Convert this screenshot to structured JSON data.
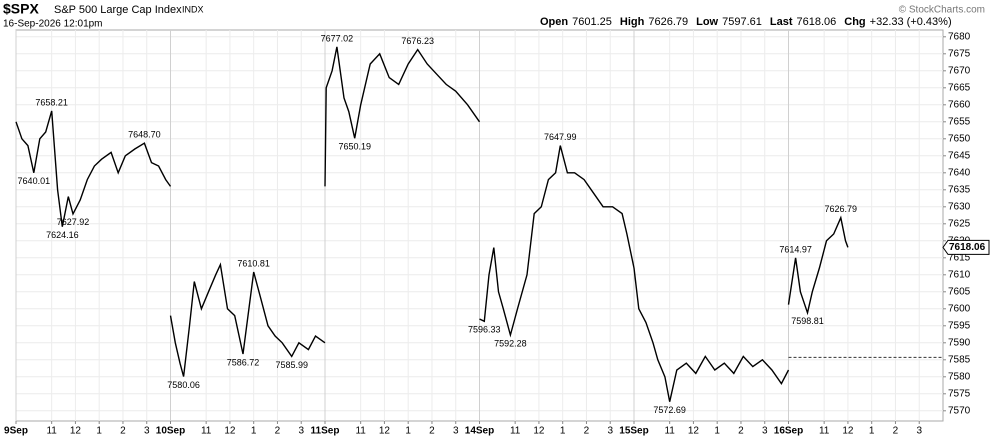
{
  "chart_data": {
    "type": "line",
    "title": "$SPX",
    "subtitle": "S&P 500 Large Cap Index",
    "exchange": "INDX",
    "timestamp": "16-Sep-2026 12:01pm",
    "quote": [
      {
        "label": "Open",
        "value": "7601.25"
      },
      {
        "label": "High",
        "value": "7626.79"
      },
      {
        "label": "Low",
        "value": "7597.61"
      },
      {
        "label": "Last",
        "value": "7618.06"
      },
      {
        "label": "Chg",
        "value": "+32.33 (+0.43%)"
      }
    ],
    "credit": "© StockCharts.com",
    "last_price": {
      "value": 7618.06,
      "label": "7618.06"
    },
    "reference_line": 7585.73,
    "color": "#000000",
    "grid": true,
    "xlim": [
      0,
      39
    ],
    "ylim": [
      7567,
      7682
    ],
    "yticks": [
      7570,
      7575,
      7580,
      7585,
      7590,
      7595,
      7600,
      7605,
      7610,
      7615,
      7620,
      7625,
      7630,
      7635,
      7640,
      7645,
      7650,
      7655,
      7660,
      7665,
      7670,
      7675,
      7680
    ],
    "xticks": [
      {
        "value": 0,
        "label": "9Sep"
      },
      {
        "value": 1.5,
        "label": "11"
      },
      {
        "value": 2.5,
        "label": "12"
      },
      {
        "value": 3.5,
        "label": "1"
      },
      {
        "value": 4.5,
        "label": "2"
      },
      {
        "value": 5.5,
        "label": "3"
      },
      {
        "value": 6.5,
        "label": "10Sep"
      },
      {
        "value": 8,
        "label": "11"
      },
      {
        "value": 9,
        "label": "12"
      },
      {
        "value": 10,
        "label": "1"
      },
      {
        "value": 11,
        "label": "2"
      },
      {
        "value": 12,
        "label": "3"
      },
      {
        "value": 13,
        "label": "11Sep"
      },
      {
        "value": 14.5,
        "label": "11"
      },
      {
        "value": 15.5,
        "label": "12"
      },
      {
        "value": 16.5,
        "label": "1"
      },
      {
        "value": 17.5,
        "label": "2"
      },
      {
        "value": 18.5,
        "label": "3"
      },
      {
        "value": 19.5,
        "label": "14Sep"
      },
      {
        "value": 21,
        "label": "11"
      },
      {
        "value": 22,
        "label": "12"
      },
      {
        "value": 23,
        "label": "1"
      },
      {
        "value": 24,
        "label": "2"
      },
      {
        "value": 25,
        "label": "3"
      },
      {
        "value": 26,
        "label": "15Sep"
      },
      {
        "value": 27.5,
        "label": "11"
      },
      {
        "value": 28.5,
        "label": "12"
      },
      {
        "value": 29.5,
        "label": "1"
      },
      {
        "value": 30.5,
        "label": "2"
      },
      {
        "value": 31.5,
        "label": "3"
      },
      {
        "value": 32.5,
        "label": "16Sep"
      },
      {
        "value": 34,
        "label": "11"
      },
      {
        "value": 35,
        "label": "12"
      },
      {
        "value": 36,
        "label": "1"
      },
      {
        "value": 37,
        "label": "2"
      },
      {
        "value": 38,
        "label": "3"
      }
    ],
    "x": [
      0,
      0.25,
      0.5,
      0.75,
      1,
      1.25,
      1.5,
      1.75,
      1.95,
      2.2,
      2.4,
      2.7,
      3,
      3.3,
      3.6,
      4,
      4.3,
      4.6,
      5,
      5.4,
      5.7,
      6,
      6.3,
      6.5,
      null,
      6.5,
      6.7,
      6.9,
      7.05,
      7.3,
      7.5,
      7.8,
      8.1,
      8.4,
      8.6,
      8.9,
      9.2,
      9.55,
      9.8,
      10,
      10.3,
      10.6,
      10.9,
      11.2,
      11.6,
      11.9,
      12.3,
      12.6,
      13,
      null,
      13,
      13.05,
      13.3,
      13.5,
      13.8,
      14,
      14.25,
      14.5,
      14.9,
      15.3,
      15.7,
      16.1,
      16.5,
      16.9,
      17.3,
      17.7,
      18.1,
      18.5,
      19,
      19.5,
      null,
      19.5,
      19.7,
      19.9,
      20.1,
      20.3,
      20.5,
      20.8,
      21.1,
      21.5,
      21.8,
      22.1,
      22.4,
      22.7,
      22.9,
      23.2,
      23.5,
      23.9,
      24.3,
      24.7,
      25.1,
      25.5,
      25.7,
      26,
      null,
      26,
      26.2,
      26.5,
      26.8,
      27,
      27.3,
      27.5,
      27.8,
      28.2,
      28.6,
      29,
      29.4,
      29.8,
      30.2,
      30.6,
      31,
      31.4,
      31.8,
      32.2,
      32.5,
      null,
      32.5,
      32.8,
      33,
      33.3,
      33.5,
      33.8,
      34.1,
      34.4,
      34.7,
      34.9,
      35
    ],
    "values": [
      7655,
      7650,
      7648,
      7640.01,
      7650,
      7652,
      7658.21,
      7635,
      7624.16,
      7633,
      7627.92,
      7632,
      7638,
      7642,
      7644,
      7646,
      7640,
      7645,
      7647,
      7648.7,
      7643,
      7642,
      7638,
      7636,
      null,
      7598,
      7590,
      7584,
      7580.06,
      7595,
      7608,
      7600,
      7605,
      7610,
      7613,
      7600,
      7598,
      7586.72,
      7600,
      7610.81,
      7603,
      7595,
      7592,
      7590,
      7585.99,
      7590,
      7588,
      7592,
      7590,
      null,
      7636,
      7665,
      7670,
      7677.02,
      7662,
      7658,
      7650.19,
      7660,
      7672,
      7675,
      7668,
      7666,
      7672,
      7676.23,
      7672,
      7669,
      7666,
      7664,
      7660,
      7655,
      null,
      7597,
      7596.33,
      7610,
      7618,
      7605,
      7600,
      7592.28,
      7600,
      7610,
      7628,
      7630,
      7638,
      7640,
      7647.99,
      7640,
      7640,
      7638,
      7634,
      7630,
      7630,
      7628,
      7622,
      7612,
      null,
      7612,
      7600,
      7596,
      7590,
      7585,
      7580,
      7572.69,
      7582,
      7584,
      7581,
      7586,
      7582,
      7584,
      7581,
      7586,
      7583,
      7585,
      7582,
      7578,
      7582,
      null,
      7601.25,
      7614.97,
      7605,
      7598.81,
      7605,
      7612,
      7620,
      7622,
      7626.79,
      7620,
      7618.06
    ],
    "annotations": [
      {
        "x": 1.5,
        "y": 7658.21,
        "label": "7658.21",
        "position": "above"
      },
      {
        "x": 0.75,
        "y": 7640.01,
        "label": "7640.01",
        "position": "below"
      },
      {
        "x": 1.95,
        "y": 7624.16,
        "label": "7624.16",
        "position": "below"
      },
      {
        "x": 2.4,
        "y": 7627.92,
        "label": "7627.92",
        "position": "below"
      },
      {
        "x": 5.4,
        "y": 7648.7,
        "label": "7648.70",
        "position": "above"
      },
      {
        "x": 7.05,
        "y": 7580.06,
        "label": "7580.06",
        "position": "below"
      },
      {
        "x": 9.55,
        "y": 7586.72,
        "label": "7586.72",
        "position": "below"
      },
      {
        "x": 10,
        "y": 7610.81,
        "label": "7610.81",
        "position": "above"
      },
      {
        "x": 11.6,
        "y": 7585.99,
        "label": "7585.99",
        "position": "below"
      },
      {
        "x": 13.5,
        "y": 7677.02,
        "label": "7677.02",
        "position": "above"
      },
      {
        "x": 14.25,
        "y": 7650.19,
        "label": "7650.19",
        "position": "below"
      },
      {
        "x": 16.9,
        "y": 7676.23,
        "label": "7676.23",
        "position": "above"
      },
      {
        "x": 19.7,
        "y": 7596.33,
        "label": "7596.33",
        "position": "below"
      },
      {
        "x": 20.8,
        "y": 7592.28,
        "label": "7592.28",
        "position": "below"
      },
      {
        "x": 22.9,
        "y": 7647.99,
        "label": "7647.99",
        "position": "above"
      },
      {
        "x": 27.5,
        "y": 7572.69,
        "label": "7572.69",
        "position": "below"
      },
      {
        "x": 32.8,
        "y": 7614.97,
        "label": "7614.97",
        "position": "above"
      },
      {
        "x": 33.3,
        "y": 7598.81,
        "label": "7598.81",
        "position": "below"
      },
      {
        "x": 34.7,
        "y": 7626.79,
        "label": "7626.79",
        "position": "above"
      }
    ]
  }
}
